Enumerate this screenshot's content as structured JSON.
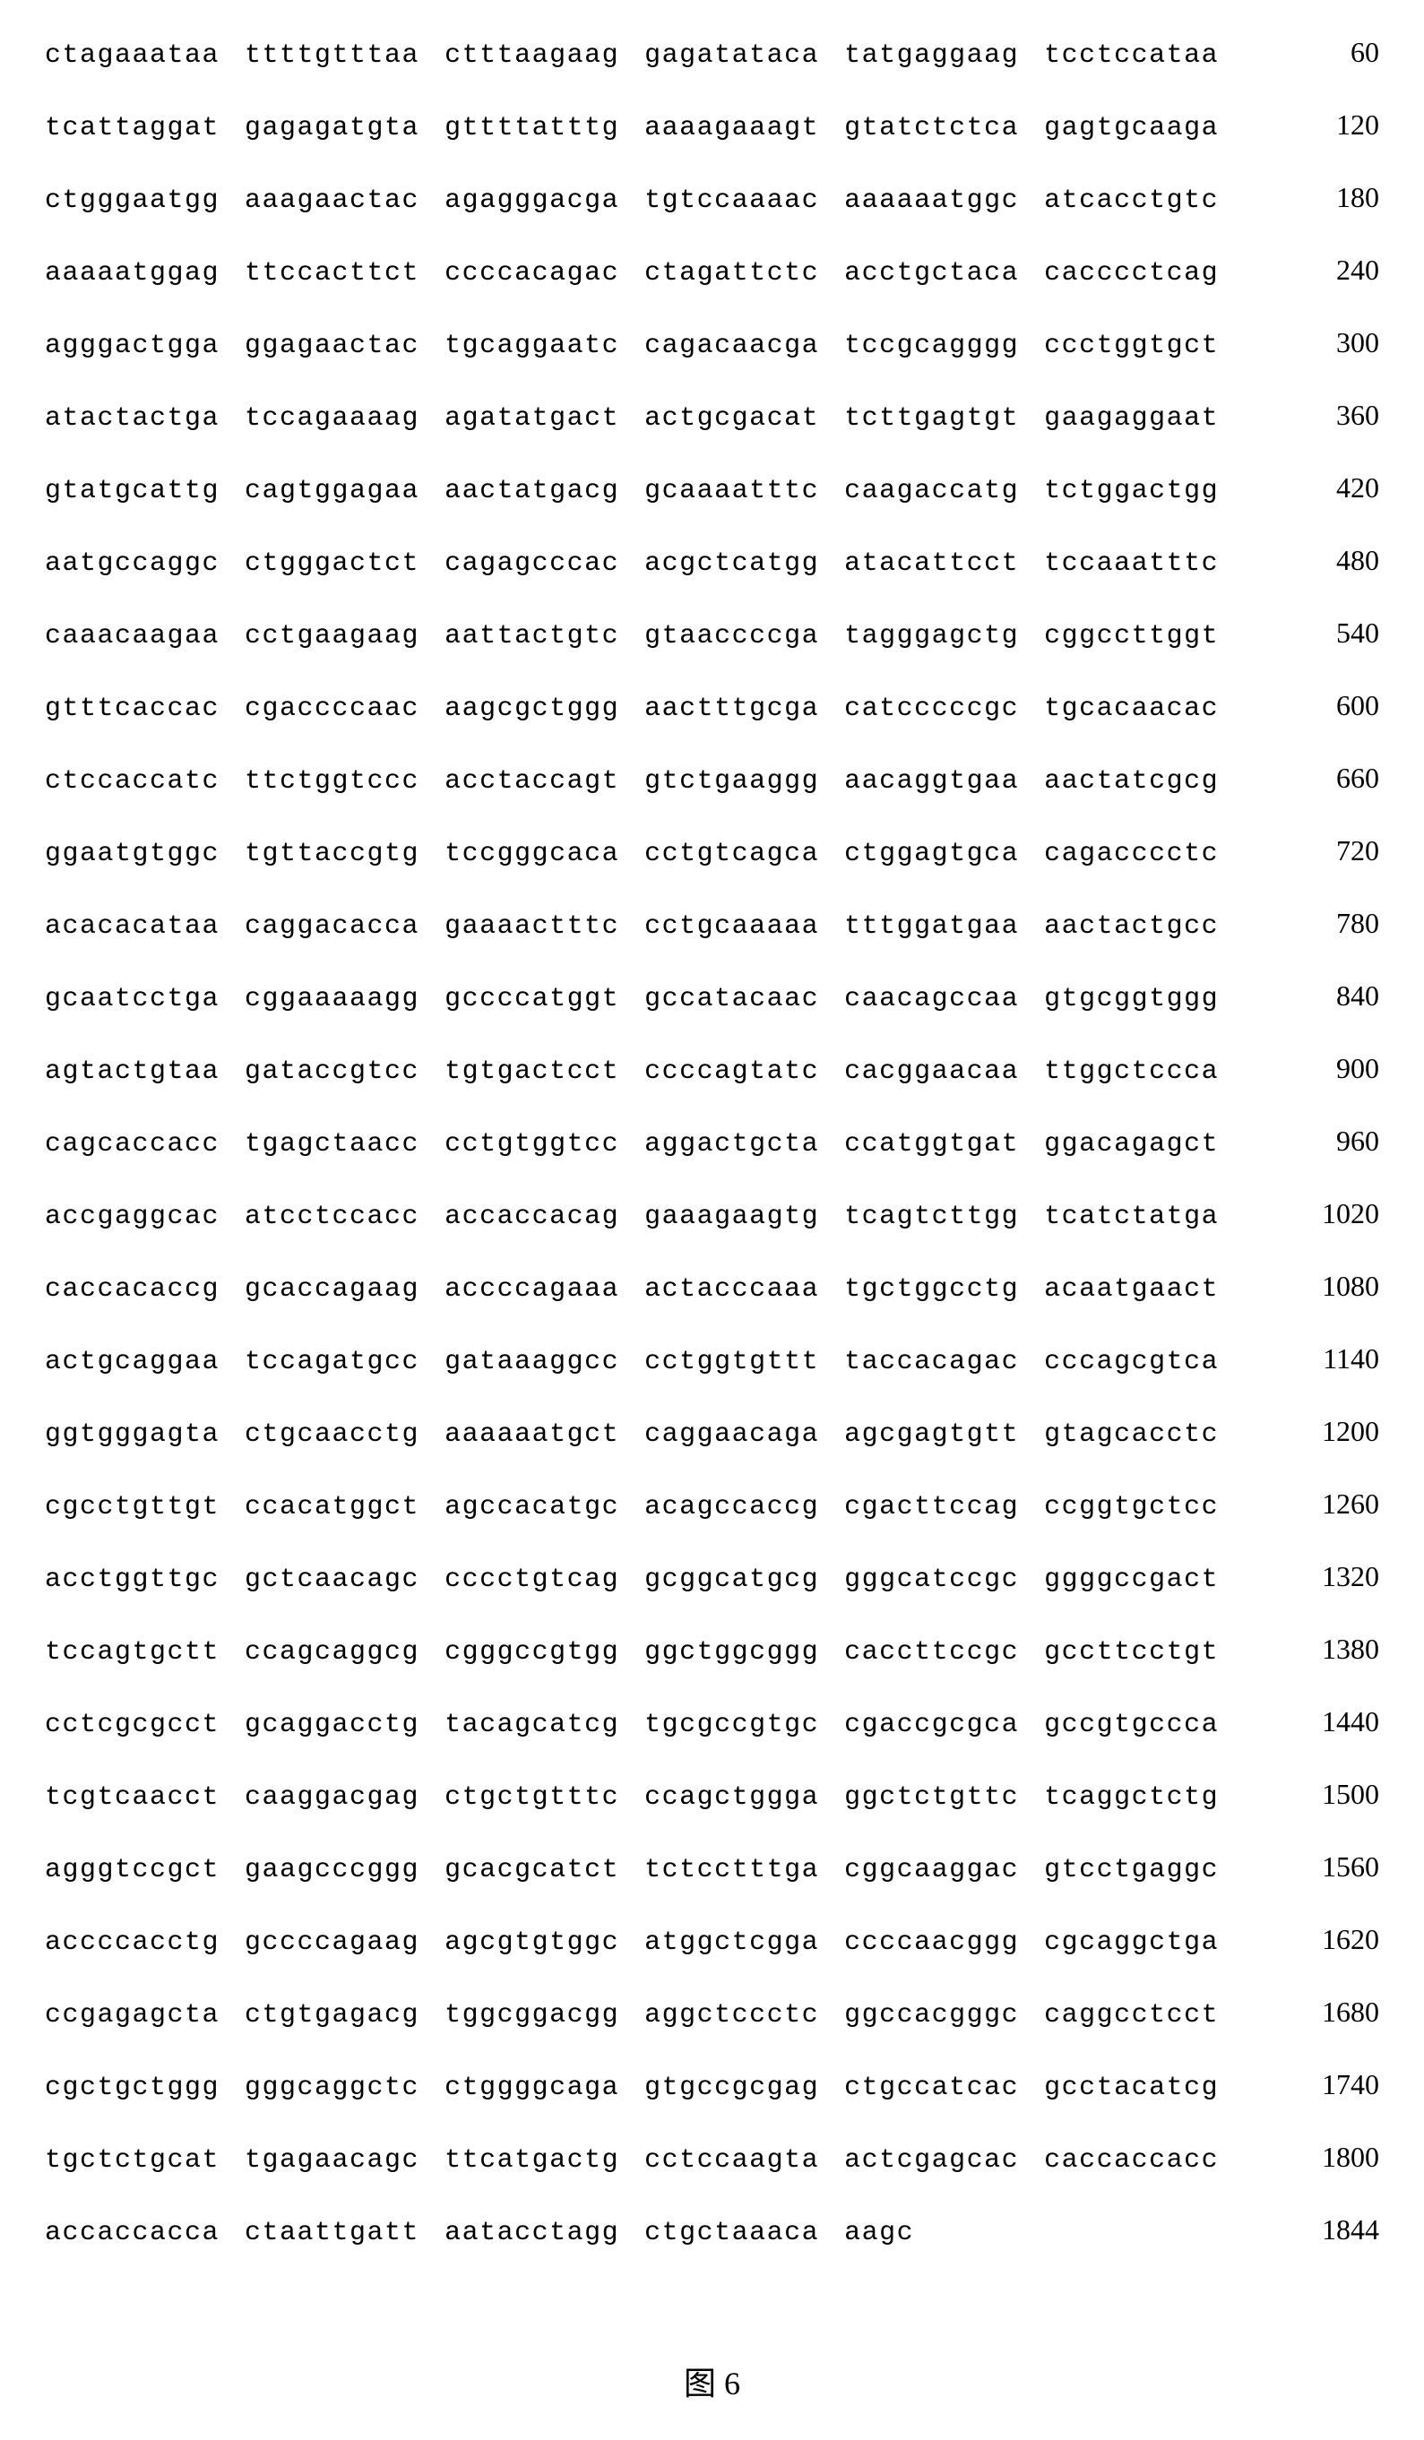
{
  "sequence_listing": {
    "type": "dna-sequence",
    "font_family": "Courier New",
    "block_fontsize": 30,
    "position_fontsize": 32,
    "text_color": "#000000",
    "background_color": "#ffffff",
    "rows": [
      {
        "blocks": [
          "ctagaaataa",
          "ttttgtttaa",
          "ctttaagaag",
          "gagatataca",
          "tatgaggaag",
          "tcctccataa"
        ],
        "position": "60"
      },
      {
        "blocks": [
          "tcattaggat",
          "gagagatgta",
          "gttttatttg",
          "aaaagaaagt",
          "gtatctctca",
          "gagtgcaaga"
        ],
        "position": "120"
      },
      {
        "blocks": [
          "ctgggaatgg",
          "aaagaactac",
          "agagggacga",
          "tgtccaaaac",
          "aaaaaatggc",
          "atcacctgtc"
        ],
        "position": "180"
      },
      {
        "blocks": [
          "aaaaatggag",
          "ttccacttct",
          "ccccacagac",
          "ctagattctc",
          "acctgctaca",
          "cacccctcag"
        ],
        "position": "240"
      },
      {
        "blocks": [
          "agggactgga",
          "ggagaactac",
          "tgcaggaatc",
          "cagacaacga",
          "tccgcagggg",
          "ccctggtgct"
        ],
        "position": "300"
      },
      {
        "blocks": [
          "atactactga",
          "tccagaaaag",
          "agatatgact",
          "actgcgacat",
          "tcttgagtgt",
          "gaagaggaat"
        ],
        "position": "360"
      },
      {
        "blocks": [
          "gtatgcattg",
          "cagtggagaa",
          "aactatgacg",
          "gcaaaatttc",
          "caagaccatg",
          "tctggactgg"
        ],
        "position": "420"
      },
      {
        "blocks": [
          "aatgccaggc",
          "ctgggactct",
          "cagagcccac",
          "acgctcatgg",
          "atacattcct",
          "tccaaatttc"
        ],
        "position": "480"
      },
      {
        "blocks": [
          "caaacaagaa",
          "cctgaagaag",
          "aattactgtc",
          "gtaaccccga",
          "tagggagctg",
          "cggccttggt"
        ],
        "position": "540"
      },
      {
        "blocks": [
          "gtttcaccac",
          "cgaccccaac",
          "aagcgctggg",
          "aactttgcga",
          "catcccccgc",
          "tgcacaacac"
        ],
        "position": "600"
      },
      {
        "blocks": [
          "ctccaccatc",
          "ttctggtccc",
          "acctaccagt",
          "gtctgaaggg",
          "aacaggtgaa",
          "aactatcgcg"
        ],
        "position": "660"
      },
      {
        "blocks": [
          "ggaatgtggc",
          "tgttaccgtg",
          "tccgggcaca",
          "cctgtcagca",
          "ctggagtgca",
          "cagacccctc"
        ],
        "position": "720"
      },
      {
        "blocks": [
          "acacacataa",
          "caggacacca",
          "gaaaactttc",
          "cctgcaaaaa",
          "tttggatgaa",
          "aactactgcc"
        ],
        "position": "780"
      },
      {
        "blocks": [
          "gcaatcctga",
          "cggaaaaagg",
          "gccccatggt",
          "gccatacaac",
          "caacagccaa",
          "gtgcggtggg"
        ],
        "position": "840"
      },
      {
        "blocks": [
          "agtactgtaa",
          "gataccgtcc",
          "tgtgactcct",
          "ccccagtatc",
          "cacggaacaa",
          "ttggctccca"
        ],
        "position": "900"
      },
      {
        "blocks": [
          "cagcaccacc",
          "tgagctaacc",
          "cctgtggtcc",
          "aggactgcta",
          "ccatggtgat",
          "ggacagagct"
        ],
        "position": "960"
      },
      {
        "blocks": [
          "accgaggcac",
          "atcctccacc",
          "accaccacag",
          "gaaagaagtg",
          "tcagtcttgg",
          "tcatctatga"
        ],
        "position": "1020"
      },
      {
        "blocks": [
          "caccacaccg",
          "gcaccagaag",
          "accccagaaa",
          "actacccaaa",
          "tgctggcctg",
          "acaatgaact"
        ],
        "position": "1080"
      },
      {
        "blocks": [
          "actgcaggaa",
          "tccagatgcc",
          "gataaaggcc",
          "cctggtgttt",
          "taccacagac",
          "cccagcgtca"
        ],
        "position": "1140"
      },
      {
        "blocks": [
          "ggtgggagta",
          "ctgcaacctg",
          "aaaaaatgct",
          "caggaacaga",
          "agcgagtgtt",
          "gtagcacctc"
        ],
        "position": "1200"
      },
      {
        "blocks": [
          "cgcctgttgt",
          "ccacatggct",
          "agccacatgc",
          "acagccaccg",
          "cgacttccag",
          "ccggtgctcc"
        ],
        "position": "1260"
      },
      {
        "blocks": [
          "acctggttgc",
          "gctcaacagc",
          "cccctgtcag",
          "gcggcatgcg",
          "gggcatccgc",
          "ggggccgact"
        ],
        "position": "1320"
      },
      {
        "blocks": [
          "tccagtgctt",
          "ccagcaggcg",
          "cgggccgtgg",
          "ggctggcggg",
          "caccttccgc",
          "gccttcctgt"
        ],
        "position": "1380"
      },
      {
        "blocks": [
          "cctcgcgcct",
          "gcaggacctg",
          "tacagcatcg",
          "tgcgccgtgc",
          "cgaccgcgca",
          "gccgtgccca"
        ],
        "position": "1440"
      },
      {
        "blocks": [
          "tcgtcaacct",
          "caaggacgag",
          "ctgctgtttc",
          "ccagctggga",
          "ggctctgttc",
          "tcaggctctg"
        ],
        "position": "1500"
      },
      {
        "blocks": [
          "agggtccgct",
          "gaagcccggg",
          "gcacgcatct",
          "tctcctttga",
          "cggcaaggac",
          "gtcctgaggc"
        ],
        "position": "1560"
      },
      {
        "blocks": [
          "accccacctg",
          "gccccagaag",
          "agcgtgtggc",
          "atggctcgga",
          "ccccaacggg",
          "cgcaggctga"
        ],
        "position": "1620"
      },
      {
        "blocks": [
          "ccgagagcta",
          "ctgtgagacg",
          "tggcggacgg",
          "aggctccctc",
          "ggccacgggc",
          "caggcctcct"
        ],
        "position": "1680"
      },
      {
        "blocks": [
          "cgctgctggg",
          "gggcaggctc",
          "ctggggcaga",
          "gtgccgcgag",
          "ctgccatcac",
          "gcctacatcg"
        ],
        "position": "1740"
      },
      {
        "blocks": [
          "tgctctgcat",
          "tgagaacagc",
          "ttcatgactg",
          "cctccaagta",
          "actcgagcac",
          "caccaccacc"
        ],
        "position": "1800"
      },
      {
        "blocks": [
          "accaccacca",
          "ctaattgatt",
          "aatacctagg",
          "ctgctaaaca",
          "aagc"
        ],
        "position": "1844"
      }
    ]
  },
  "figure_label": "图 6"
}
